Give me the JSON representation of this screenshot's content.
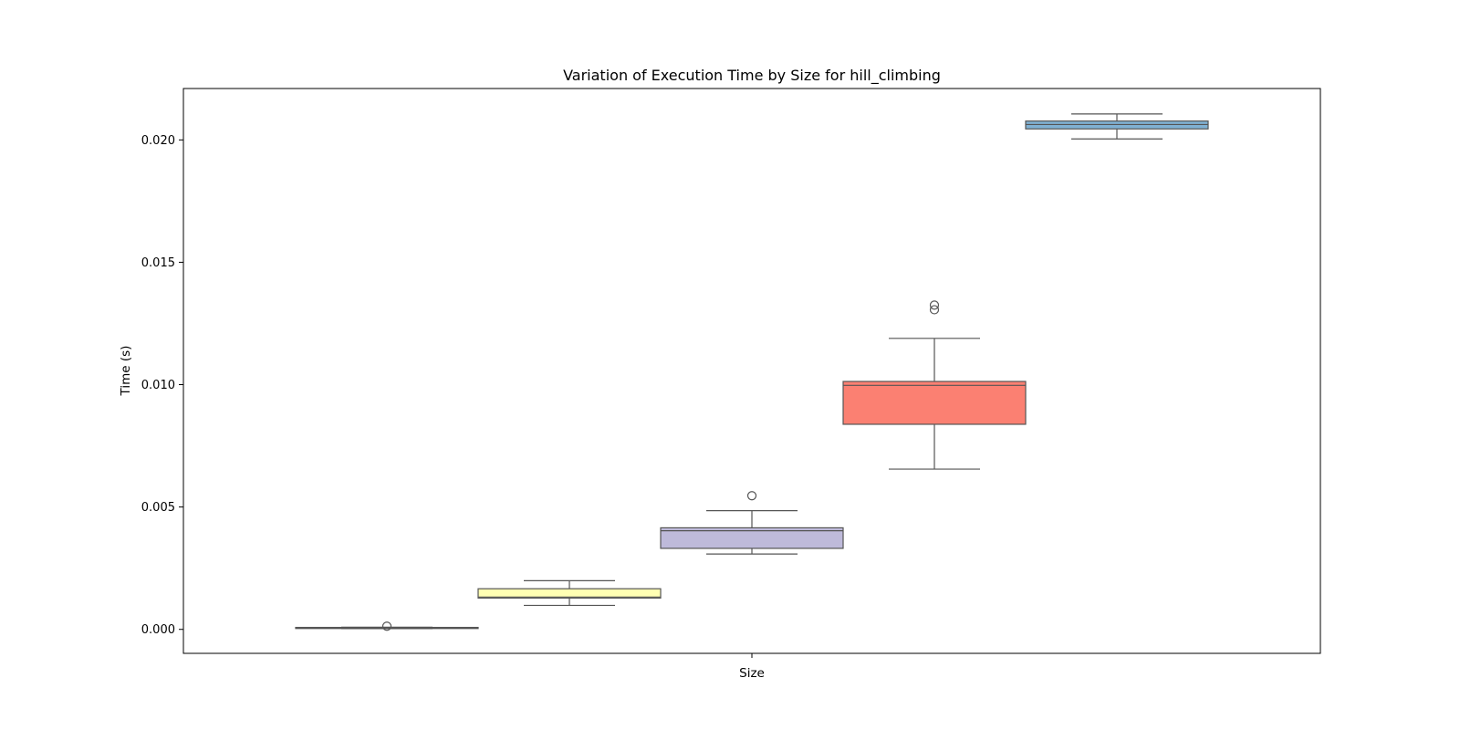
{
  "chart_data": {
    "type": "box",
    "title": "Variation of Execution Time by Size for hill_climbing",
    "xlabel": "Size",
    "ylabel": "Time (s)",
    "ylim": [
      -0.00098,
      0.0221
    ],
    "yticks": [
      0.0,
      0.005,
      0.01,
      0.015,
      0.02
    ],
    "ytick_labels": [
      "0.000",
      "0.005",
      "0.010",
      "0.015",
      "0.020"
    ],
    "grid": false,
    "legend": "none",
    "boxes": [
      {
        "color": "#8dd3c7",
        "whisker_low": 3e-05,
        "q1": 4e-05,
        "median": 6e-05,
        "q3": 8e-05,
        "whisker_high": 9e-05,
        "outliers": [
          0.00013
        ]
      },
      {
        "color": "#ffffb3",
        "whisker_low": 0.00098,
        "q1": 0.00128,
        "median": 0.00132,
        "q3": 0.00166,
        "whisker_high": 0.00199,
        "outliers": []
      },
      {
        "color": "#bebada",
        "whisker_low": 0.00308,
        "q1": 0.00331,
        "median": 0.00403,
        "q3": 0.00415,
        "whisker_high": 0.00485,
        "outliers": [
          0.00546
        ]
      },
      {
        "color": "#fb8072",
        "whisker_low": 0.00655,
        "q1": 0.00838,
        "median": 0.00997,
        "q3": 0.01013,
        "whisker_high": 0.01189,
        "outliers": [
          0.01306,
          0.01325
        ]
      },
      {
        "color": "#80b1d3",
        "whisker_low": 0.02004,
        "q1": 0.02045,
        "median": 0.02063,
        "q3": 0.02077,
        "whisker_high": 0.02106,
        "outliers": []
      }
    ]
  }
}
